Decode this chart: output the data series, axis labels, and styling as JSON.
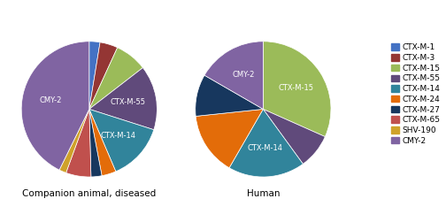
{
  "legend_labels": [
    "CTX-M-1",
    "CTX-M-3",
    "CTX-M-15",
    "CTX-M-55",
    "CTX-M-14",
    "CTX-M-24",
    "CTX-M-27",
    "CTX-M-65",
    "SHV-190",
    "CMY-2"
  ],
  "colors": [
    "#4472C4",
    "#943634",
    "#9BBB59",
    "#604A7B",
    "#31849B",
    "#E36C09",
    "#17375E",
    "#C0504D",
    "#CFA22A",
    "#8064A2"
  ],
  "pie1_values": [
    3,
    5,
    9,
    18,
    16,
    4,
    3,
    7,
    2,
    50
  ],
  "pie2_values": [
    0,
    0,
    38,
    10,
    22,
    18,
    12,
    0,
    0,
    20
  ],
  "title1": "Companion animal, diseased",
  "title2": "Human",
  "figsize": [
    5.04,
    2.42
  ],
  "dpi": 100
}
